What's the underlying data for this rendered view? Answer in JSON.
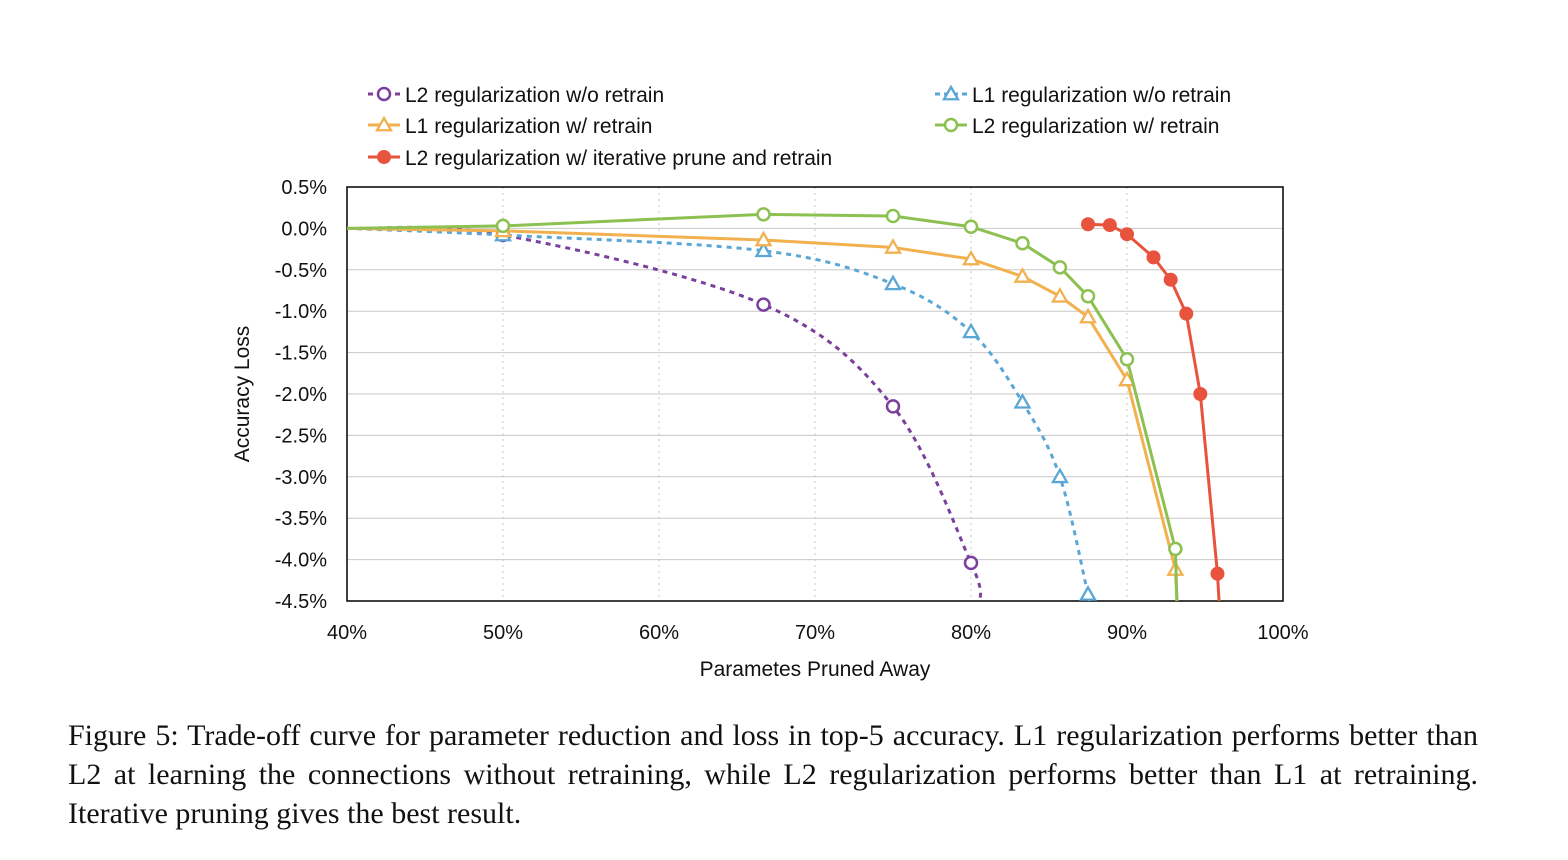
{
  "chart_data": {
    "type": "line",
    "xlabel": "Parametes Pruned Away",
    "ylabel": "Accuracy Loss",
    "xlim": [
      40,
      100
    ],
    "ylim": [
      -4.5,
      0.5
    ],
    "x_ticks": [
      "40%",
      "50%",
      "60%",
      "70%",
      "80%",
      "90%",
      "100%"
    ],
    "y_ticks": [
      "0.5%",
      "0.0%",
      "-0.5%",
      "-1.0%",
      "-1.5%",
      "-2.0%",
      "-2.5%",
      "-3.0%",
      "-3.5%",
      "-4.0%",
      "-4.5%"
    ],
    "grid": "horizontal solid, vertical dotted",
    "legend_position": "top",
    "series": [
      {
        "name": "L2 regularization w/o retrain",
        "color": "#7B3F9E",
        "line": "dashed",
        "marker": "circle",
        "x": [
          40,
          50,
          66.7,
          75,
          80,
          80.6
        ],
        "y": [
          0.0,
          -0.08,
          -0.92,
          -2.15,
          -4.04,
          -4.5
        ]
      },
      {
        "name": "L1 regularization w/o retrain",
        "color": "#5AA7D6",
        "line": "dashed",
        "marker": "triangle",
        "x": [
          40,
          50,
          66.7,
          75,
          80,
          83.3,
          85.7,
          87.5,
          87.6
        ],
        "y": [
          0.0,
          -0.08,
          -0.27,
          -0.67,
          -1.25,
          -2.1,
          -3.0,
          -4.42,
          -4.5
        ]
      },
      {
        "name": "L1 regularization w/ retrain",
        "color": "#F2B04F",
        "line": "solid",
        "marker": "triangle",
        "x": [
          40,
          50,
          66.7,
          75,
          80,
          83.3,
          85.7,
          87.5,
          90,
          93.1,
          93.2
        ],
        "y": [
          0.0,
          -0.03,
          -0.14,
          -0.23,
          -0.37,
          -0.58,
          -0.82,
          -1.07,
          -1.83,
          -4.12,
          -4.5
        ]
      },
      {
        "name": "L2 regularization w/ retrain",
        "color": "#8CC152",
        "line": "solid",
        "marker": "circle",
        "x": [
          40,
          50,
          66.7,
          75,
          80,
          83.3,
          85.7,
          87.5,
          90,
          93.1,
          93.2
        ],
        "y": [
          0.0,
          0.03,
          0.17,
          0.15,
          0.02,
          -0.18,
          -0.47,
          -0.82,
          -1.58,
          -3.87,
          -4.5
        ]
      },
      {
        "name": "L2 regularization w/ iterative prune and retrain",
        "color": "#E8533E",
        "line": "solid",
        "marker": "filled-circle",
        "x": [
          87.5,
          88.9,
          90,
          91.7,
          92.8,
          93.8,
          94.7,
          95.8,
          95.9
        ],
        "y": [
          0.05,
          0.04,
          -0.07,
          -0.35,
          -0.62,
          -1.03,
          -2.0,
          -4.17,
          -4.5
        ]
      }
    ]
  },
  "caption": "Figure 5: Trade-off curve for parameter reduction and loss in top-5 accuracy. L1 regularization performs better than L2 at learning the connections without retraining, while L2 regularization performs better than L1 at retraining. Iterative pruning gives the best result."
}
